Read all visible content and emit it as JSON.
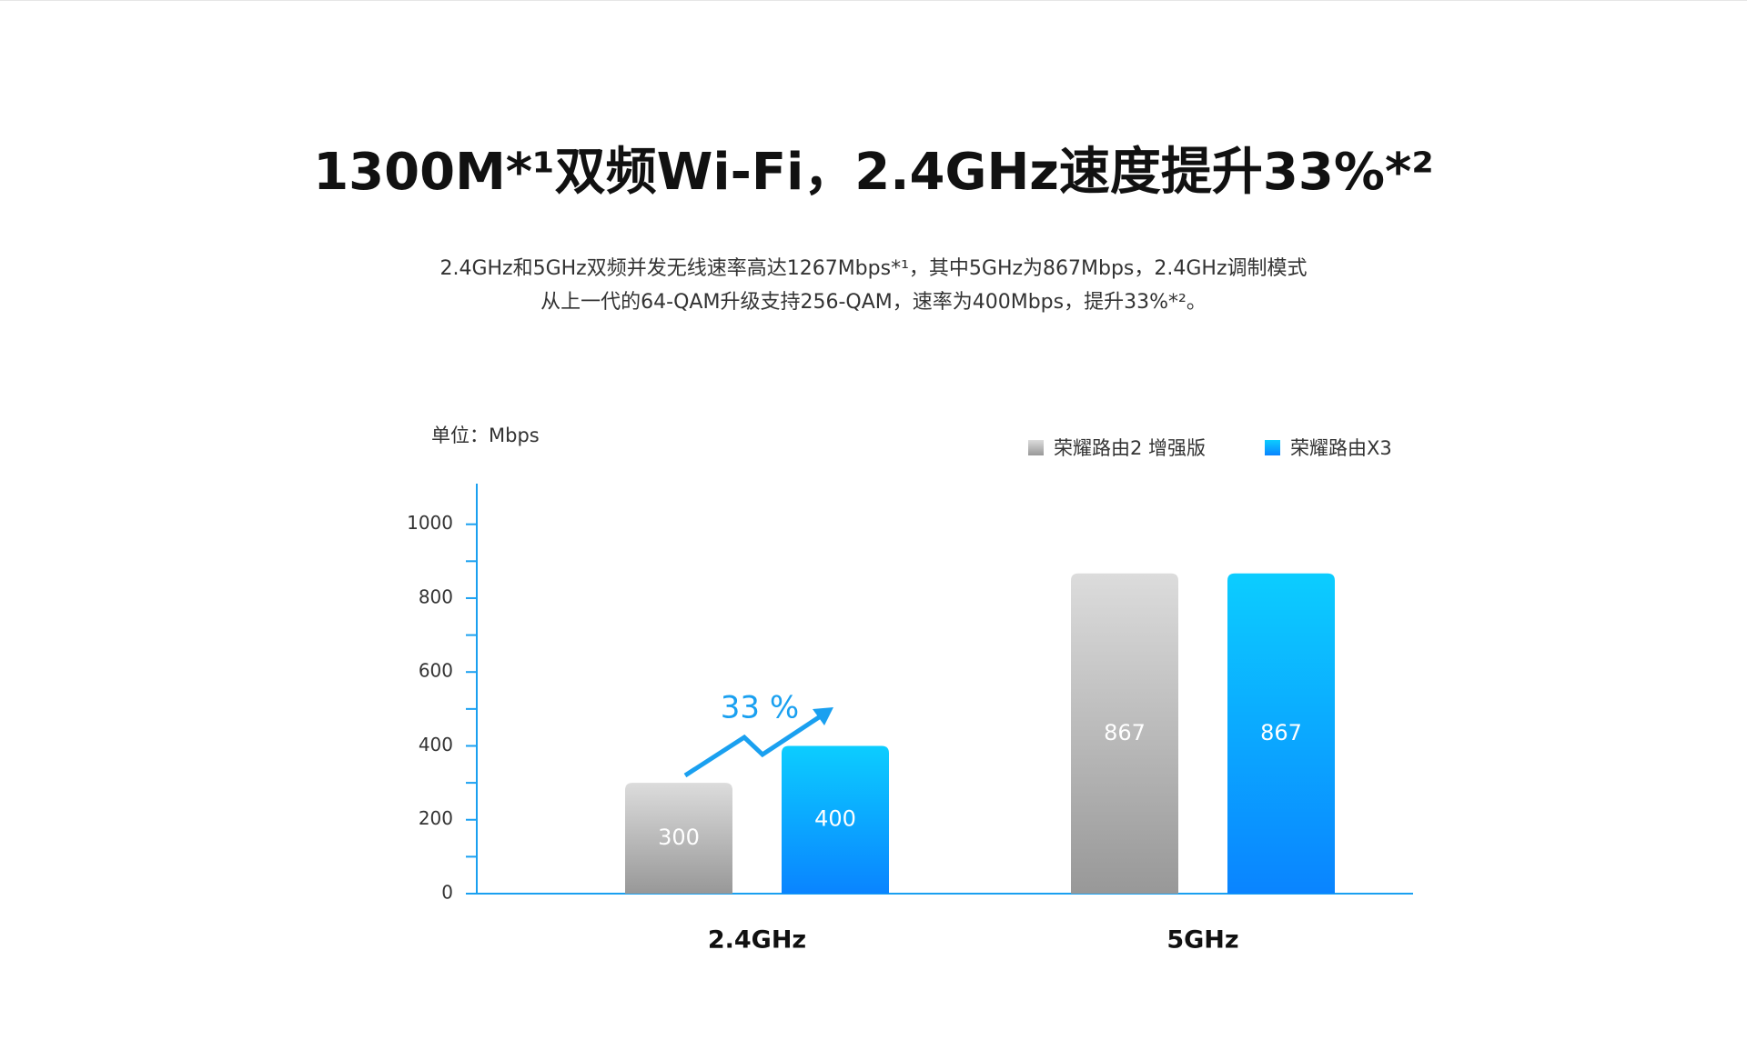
{
  "chart_data": {
    "type": "bar",
    "title": "1300M*¹双频Wi-Fi，2.4GHz速度提升33%*²",
    "subtitle": [
      "2.4GHz和5GHz双频并发无线速率高达1267Mbps*¹，其中5GHz为867Mbps，2.4GHz调制模式",
      "从上一代的64-QAM升级支持256-QAM，速率为400Mbps，提升33%*²。"
    ],
    "y_label": "单位：Mbps",
    "categories": [
      "2.4GHz",
      "5GHz"
    ],
    "series": [
      {
        "name": "荣耀路由2 增强版",
        "color": "#dcdcdc",
        "color_end": "#989898",
        "values": [
          300,
          867
        ]
      },
      {
        "name": "荣耀路由X3",
        "color": "#0ccdff",
        "color_end": "#0a84ff",
        "values": [
          400,
          867
        ]
      }
    ],
    "ylim": [
      0,
      1110
    ],
    "yticks": [
      0,
      200,
      400,
      600,
      800,
      1000
    ],
    "minor_yticks": [
      100,
      300,
      500,
      700,
      900
    ],
    "grid": false,
    "legend": "top-right",
    "axis_color": "#1aa0f0",
    "annotation": {
      "text": "33 %",
      "color": "#1aa0f0"
    }
  }
}
